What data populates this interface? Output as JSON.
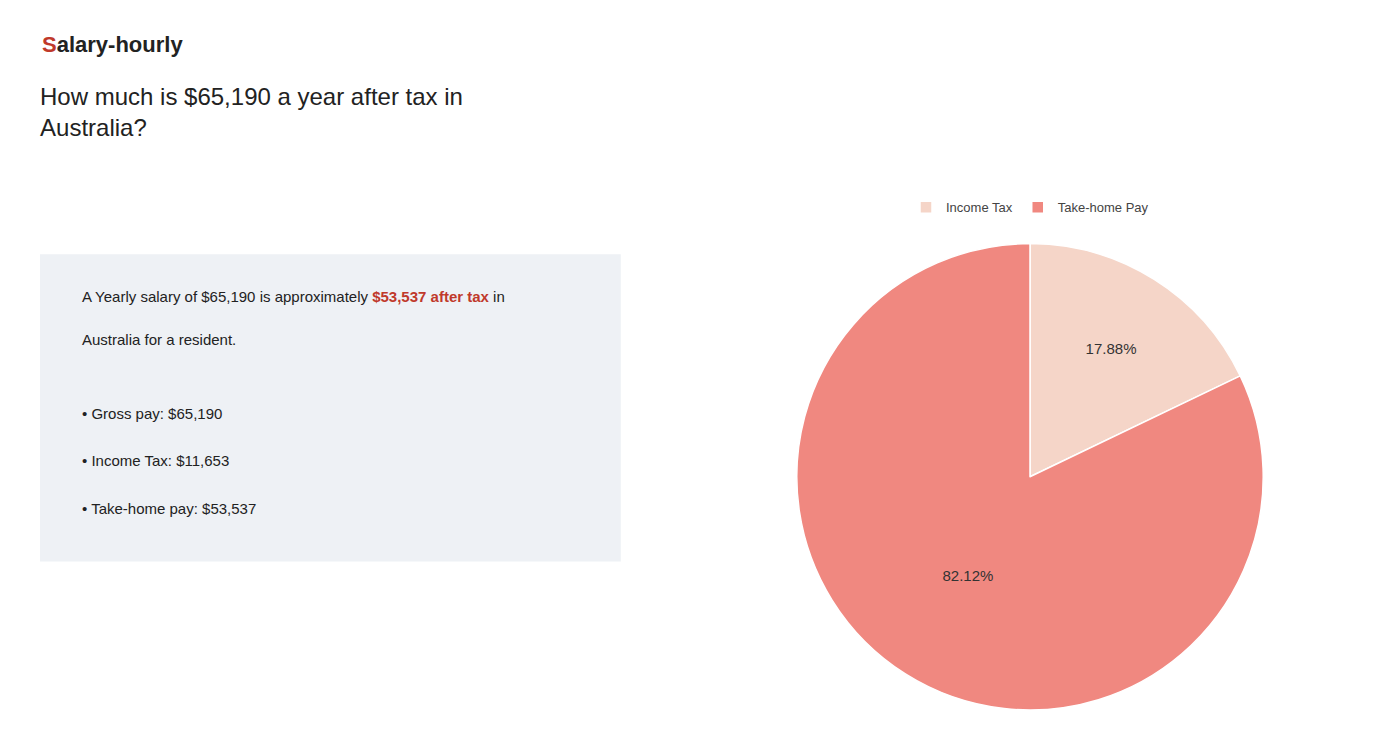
{
  "chart_data": {
    "type": "pie",
    "title": "How much is $65,190 a year after tax in\nAustralia?",
    "categories": [
      "Income Tax",
      "Take-home Pay"
    ],
    "values": [
      17.88,
      82.12
    ],
    "value_labels": [
      "17.88%",
      "82.12%"
    ],
    "data_labels": true,
    "colors": [
      "#f5d5c8",
      "#f08880"
    ],
    "legend": "top",
    "annotations": [
      [
        {
          "text": "S",
          "color": "#c0392b"
        },
        {
          "text": "alary-hourly"
        }
      ],
      [
        {
          "text": "A Yearly salary of $65,190 is approximately "
        },
        {
          "text": "$53,537 after tax",
          "color": "#c0392b"
        },
        {
          "text": " in"
        }
      ],
      [
        {
          "text": "Australia for a resident."
        }
      ],
      [
        {
          "text": "• Gross pay: $65,190"
        }
      ],
      [
        {
          "text": "• Income Tax: $11,653"
        }
      ],
      [
        {
          "text": "• Take-home pay: $53,537"
        }
      ]
    ]
  }
}
